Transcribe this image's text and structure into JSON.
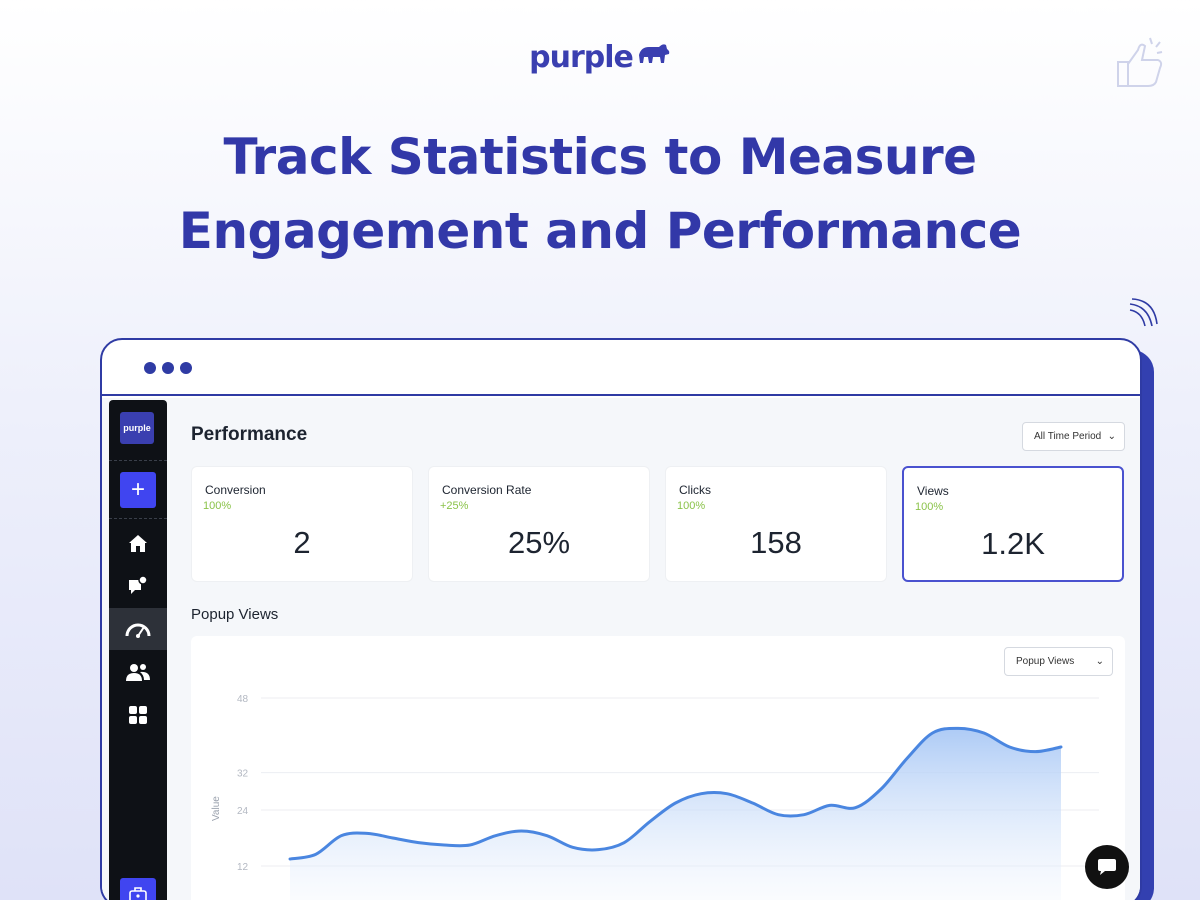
{
  "brand": {
    "logo_text": "purple",
    "sidebar_logo_text": "purple"
  },
  "headline": {
    "line1": "Track Statistics to Measure",
    "line2": "Engagement and Performance"
  },
  "colors": {
    "brand": "#3238a8",
    "accent": "#4045f0",
    "positive": "#8bc34a",
    "chart_line": "#4a86e0",
    "sidebar": "#0e1116"
  },
  "sidebar": {
    "items": [
      {
        "icon": "home-icon"
      },
      {
        "icon": "chat-notification-icon"
      },
      {
        "icon": "dashboard-gauge-icon",
        "active": true
      },
      {
        "icon": "users-icon"
      },
      {
        "icon": "grid-icon"
      }
    ],
    "add_icon": "plus-icon",
    "bottom_icon": "briefcase-icon"
  },
  "performance": {
    "title": "Performance",
    "period_select": "All Time Period",
    "cards": [
      {
        "label": "Conversion",
        "change": "100%",
        "value": "2"
      },
      {
        "label": "Conversion Rate",
        "change": "+25%",
        "value": "25%"
      },
      {
        "label": "Clicks",
        "change": "100%",
        "value": "158"
      },
      {
        "label": "Views",
        "change": "100%",
        "value": "1.2K",
        "selected": true
      }
    ]
  },
  "popup_views": {
    "title": "Popup Views",
    "metric_select": "Popup Views"
  },
  "chart_data": {
    "type": "area",
    "title": "",
    "xlabel": "",
    "ylabel": "Value",
    "ylim": [
      0,
      48
    ],
    "yticks": [
      "48",
      "32",
      "24",
      "12"
    ],
    "grid": true,
    "series": [
      {
        "values": [
          13.5,
          14.5,
          18.5,
          19,
          18,
          17,
          16.5,
          16.5,
          18.5,
          19.5,
          18.5,
          16,
          15.5,
          17,
          21.5,
          25.5,
          27.5,
          27.5,
          25.5,
          23,
          23,
          25,
          24.5,
          28.5,
          35,
          40.5,
          41.5,
          40.5,
          37.5,
          36.5,
          37.5
        ]
      }
    ]
  }
}
